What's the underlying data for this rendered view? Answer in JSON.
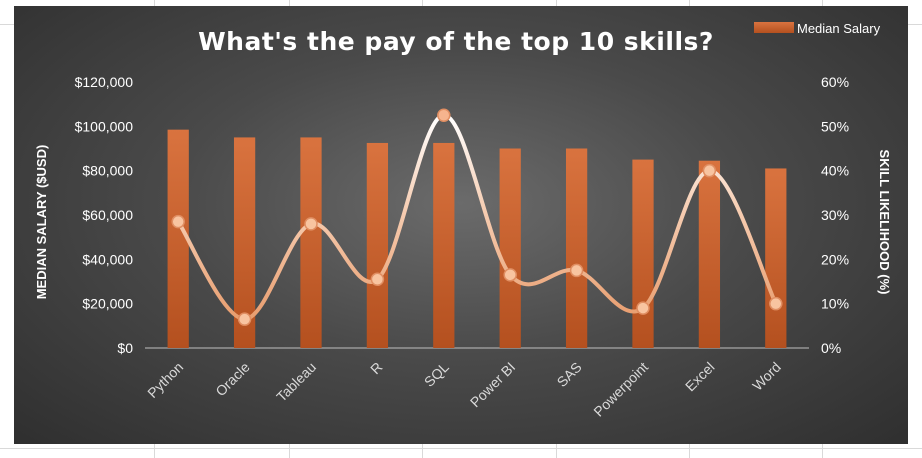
{
  "chart_data": {
    "type": "bar",
    "title": "What's the pay of the top 10 skills?",
    "categories": [
      "Python",
      "Oracle",
      "Tableau",
      "R",
      "SQL",
      "Power BI",
      "SAS",
      "Powerpoint",
      "Excel",
      "Word"
    ],
    "series": [
      {
        "name": "Median Salary",
        "type": "bar",
        "axis": "left",
        "values": [
          98500,
          95000,
          95000,
          92500,
          92500,
          90000,
          90000,
          85000,
          84500,
          81000
        ]
      },
      {
        "type": "line",
        "axis": "right",
        "smooth": true,
        "values": [
          28.5,
          6.5,
          28.0,
          15.5,
          52.5,
          16.5,
          17.5,
          9.0,
          40.0,
          10.0
        ]
      }
    ],
    "ylabel": "MEDIAN SALARY ($USD)",
    "ylim": [
      0,
      120000
    ],
    "yticks": [
      "$0",
      "$20,000",
      "$40,000",
      "$60,000",
      "$80,000",
      "$100,000",
      "$120,000"
    ],
    "y2label": "SKILL LIKELIHOOD (%)",
    "y2lim": [
      0,
      60
    ],
    "y2ticks": [
      "0%",
      "10%",
      "20%",
      "30%",
      "40%",
      "50%",
      "60%"
    ],
    "legend": "top-right",
    "grid": false,
    "colors": {
      "bar": "#c55a28",
      "line": "#f4b183",
      "line_peak": "#ffffff",
      "marker": "#f8c4a0"
    }
  }
}
